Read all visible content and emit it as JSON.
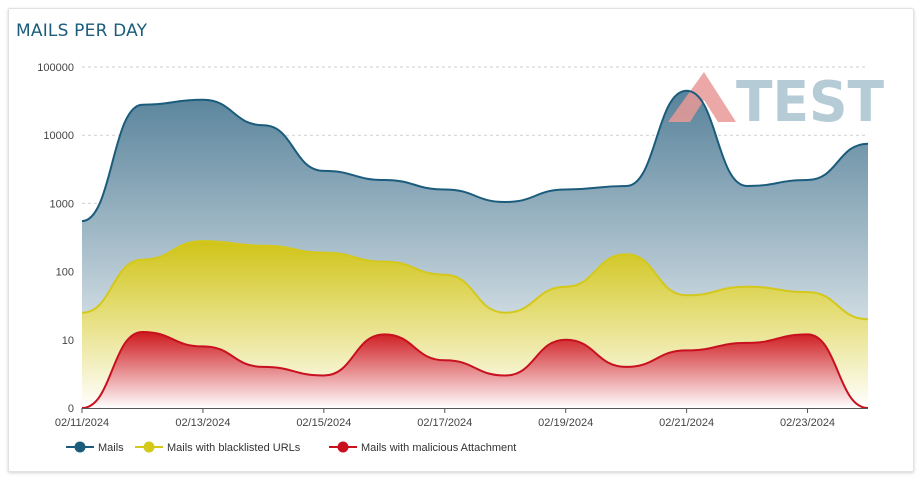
{
  "page": {
    "title": "MAILS PER DAY"
  },
  "watermark": {
    "brand": "AV-TEST",
    "text": "TEST",
    "colors": {
      "av": "#e89a98",
      "test": "#a9c3cf"
    }
  },
  "chart_data": {
    "type": "area",
    "title": "MAILS PER DAY",
    "xlabel": "",
    "ylabel": "",
    "y_scale": "log",
    "ylim": [
      0,
      100000
    ],
    "y_ticks": [
      "0",
      "10",
      "100",
      "1000",
      "10000",
      "100000"
    ],
    "x_tick_labels": [
      "02/11/2024",
      "02/13/2024",
      "02/15/2024",
      "02/17/2024",
      "02/19/2024",
      "02/21/2024",
      "02/23/2024"
    ],
    "grid": true,
    "legend_position": "bottom-left",
    "x": [
      "02/11/2024",
      "02/12/2024",
      "02/13/2024",
      "02/14/2024",
      "02/15/2024",
      "02/16/2024",
      "02/17/2024",
      "02/18/2024",
      "02/19/2024",
      "02/20/2024",
      "02/21/2024",
      "02/22/2024",
      "02/23/2024",
      "02/24/2024"
    ],
    "series": [
      {
        "name": "Mails",
        "color": "#1b5c7c",
        "values": [
          550,
          28000,
          33000,
          14000,
          3000,
          2200,
          1600,
          1050,
          1600,
          1800,
          45000,
          1800,
          2200,
          7500
        ]
      },
      {
        "name": "Mails with blacklisted URLs",
        "color": "#d4c81a",
        "values": [
          25,
          150,
          280,
          240,
          190,
          140,
          90,
          25,
          60,
          180,
          45,
          60,
          50,
          20
        ]
      },
      {
        "name": "Mails with malicious Attachment",
        "color": "#c8101e",
        "values": [
          0,
          13,
          8,
          4,
          3,
          12,
          5,
          3,
          10,
          4,
          7,
          9,
          12,
          0
        ]
      }
    ]
  }
}
